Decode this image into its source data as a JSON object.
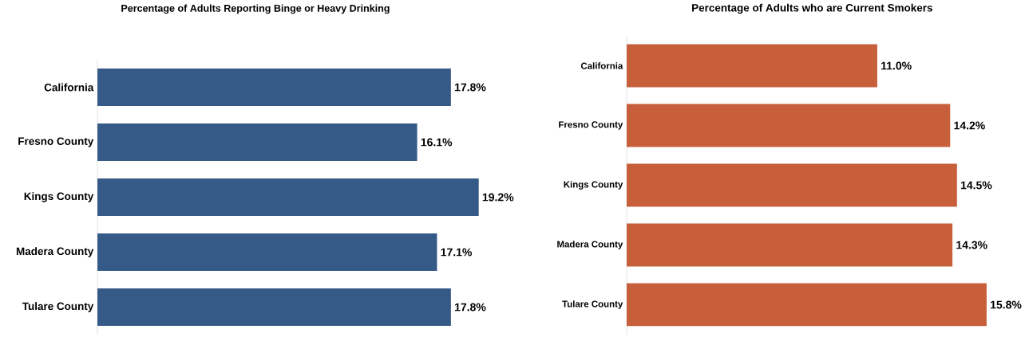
{
  "chart_data": [
    {
      "type": "bar",
      "orientation": "horizontal",
      "title": "Percentage of Adults Reporting Binge or Heavy Drinking",
      "categories": [
        "California",
        "Fresno County",
        "Kings County",
        "Madera County",
        "Tulare County"
      ],
      "values": [
        17.8,
        16.1,
        19.2,
        17.1,
        17.8
      ],
      "value_labels": [
        "17.8%",
        "16.1%",
        "19.2%",
        "17.1%",
        "17.8%"
      ],
      "color": "#365a87",
      "tick_labels": "y"
    },
    {
      "type": "bar",
      "orientation": "horizontal",
      "title": "Percentage of Adults who are Current Smokers",
      "categories": [
        "California",
        "Fresno County",
        "Kings County",
        "Madera County",
        "Tulare County"
      ],
      "values": [
        11.0,
        14.2,
        14.5,
        14.3,
        15.8
      ],
      "value_labels": [
        "11.0%",
        "14.2%",
        "14.5%",
        "14.3%",
        "15.8%"
      ],
      "color": "#c65f3a",
      "tick_labels": "y"
    }
  ]
}
